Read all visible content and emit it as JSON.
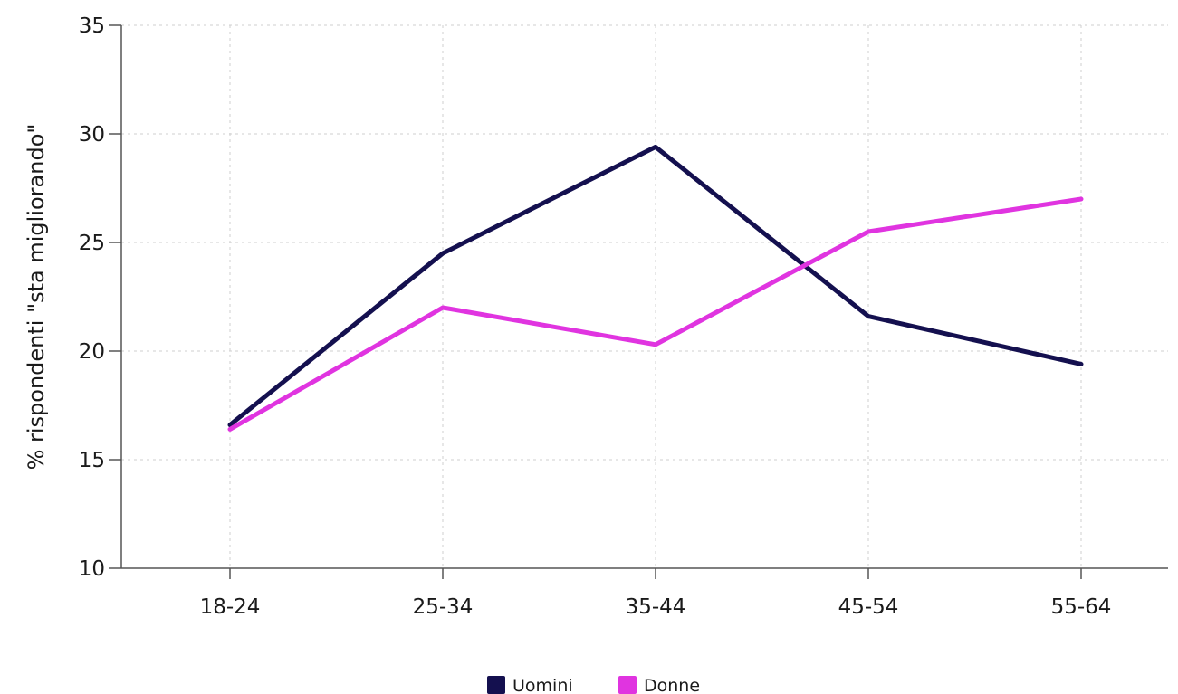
{
  "chart_data": {
    "type": "line",
    "categories": [
      "18-24",
      "25-34",
      "35-44",
      "45-54",
      "55-64"
    ],
    "series": [
      {
        "name": "Uomini",
        "color": "#14104f",
        "values": [
          16.6,
          24.5,
          29.4,
          21.6,
          19.4
        ]
      },
      {
        "name": "Donne",
        "color": "#e034e0",
        "values": [
          16.4,
          22.0,
          20.3,
          25.5,
          27.0
        ]
      }
    ],
    "ylabel": "% rispondenti \"sta migliorando\"",
    "ylim": [
      10,
      35
    ],
    "yticks": [
      "10",
      "15",
      "20",
      "25",
      "30",
      "35"
    ],
    "grid": true,
    "legend_position": "bottom-center"
  }
}
